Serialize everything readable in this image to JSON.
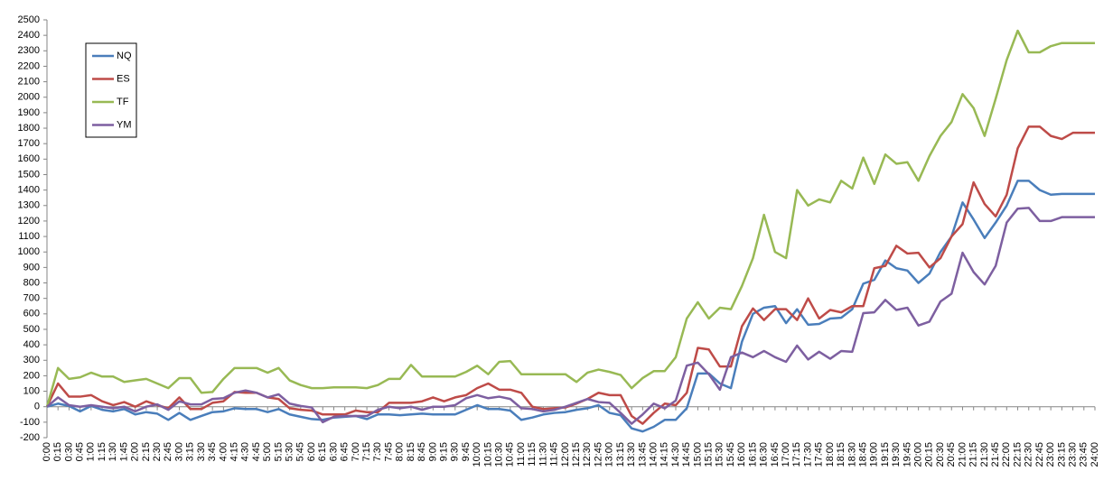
{
  "chart_data": {
    "type": "line",
    "categories": [
      "0:00",
      "0:15",
      "0:30",
      "0:45",
      "1:00",
      "1:15",
      "1:30",
      "1:45",
      "2:00",
      "2:15",
      "2:30",
      "2:45",
      "3:00",
      "3:15",
      "3:30",
      "3:45",
      "4:00",
      "4:15",
      "4:30",
      "4:45",
      "5:00",
      "5:15",
      "5:30",
      "5:45",
      "6:00",
      "6:15",
      "6:30",
      "6:45",
      "7:00",
      "7:15",
      "7:30",
      "7:45",
      "8:00",
      "8:15",
      "8:45",
      "9:00",
      "9:15",
      "9:30",
      "9:45",
      "10:00",
      "10:15",
      "10:30",
      "10:45",
      "11:00",
      "11:15",
      "11:30",
      "11:45",
      "12:00",
      "12:15",
      "12:30",
      "12:45",
      "13:00",
      "13:15",
      "13:30",
      "13:45",
      "14:00",
      "14:15",
      "14:30",
      "14:45",
      "15:00",
      "15:15",
      "15:30",
      "15:45",
      "16:00",
      "16:15",
      "16:30",
      "16:45",
      "17:00",
      "17:15",
      "17:30",
      "17:45",
      "18:00",
      "18:15",
      "18:30",
      "18:45",
      "19:00",
      "19:15",
      "19:30",
      "19:45",
      "20:00",
      "20:15",
      "20:30",
      "20:45",
      "21:00",
      "21:15",
      "21:30",
      "21:45",
      "22:00",
      "22:15",
      "22:30",
      "22:45",
      "23:00",
      "23:15",
      "23:30",
      "23:45",
      "24:00"
    ],
    "series": [
      {
        "name": "NQ",
        "color": "#4a7ebb",
        "values": [
          0,
          20,
          5,
          -30,
          5,
          -20,
          -30,
          -15,
          -50,
          -35,
          -45,
          -85,
          -40,
          -85,
          -60,
          -35,
          -30,
          -10,
          -15,
          -15,
          -35,
          -15,
          -50,
          -65,
          -80,
          -85,
          -70,
          -65,
          -60,
          -80,
          -50,
          -50,
          -55,
          -50,
          -45,
          -50,
          -50,
          -50,
          -20,
          10,
          -15,
          -15,
          -25,
          -85,
          -70,
          -50,
          -40,
          -35,
          -20,
          -10,
          10,
          -40,
          -55,
          -140,
          -160,
          -130,
          -85,
          -85,
          -10,
          215,
          215,
          150,
          120,
          420,
          600,
          640,
          650,
          540,
          630,
          530,
          535,
          570,
          575,
          630,
          795,
          820,
          945,
          895,
          880,
          800,
          860,
          1000,
          1100,
          1320,
          1210,
          1090,
          1190,
          1300,
          1460,
          1460,
          1400,
          1370,
          1375,
          1375,
          1375,
          1375
        ]
      },
      {
        "name": "ES",
        "color": "#be4b48",
        "values": [
          0,
          150,
          65,
          65,
          75,
          35,
          10,
          30,
          0,
          35,
          10,
          -10,
          60,
          -15,
          -15,
          25,
          35,
          95,
          90,
          90,
          60,
          50,
          -10,
          -20,
          -25,
          -50,
          -50,
          -50,
          -25,
          -35,
          -35,
          25,
          25,
          25,
          35,
          60,
          35,
          60,
          75,
          120,
          150,
          110,
          110,
          90,
          0,
          -15,
          -10,
          -5,
          20,
          50,
          90,
          75,
          75,
          -60,
          -110,
          -40,
          20,
          10,
          90,
          380,
          370,
          260,
          260,
          520,
          635,
          560,
          630,
          630,
          560,
          700,
          570,
          625,
          610,
          650,
          650,
          895,
          910,
          1040,
          990,
          995,
          900,
          960,
          1100,
          1180,
          1450,
          1310,
          1230,
          1370,
          1670,
          1810,
          1810,
          1750,
          1730,
          1770,
          1770,
          1770
        ]
      },
      {
        "name": "TF",
        "color": "#98b954",
        "values": [
          0,
          250,
          180,
          190,
          220,
          195,
          195,
          160,
          170,
          180,
          150,
          120,
          185,
          185,
          90,
          95,
          180,
          250,
          250,
          250,
          220,
          250,
          170,
          140,
          120,
          120,
          125,
          125,
          125,
          120,
          140,
          180,
          180,
          270,
          195,
          195,
          195,
          195,
          225,
          265,
          210,
          290,
          295,
          210,
          210,
          210,
          210,
          210,
          160,
          220,
          240,
          225,
          205,
          120,
          185,
          230,
          230,
          320,
          570,
          675,
          570,
          640,
          630,
          780,
          960,
          1240,
          1000,
          960,
          1400,
          1300,
          1340,
          1320,
          1460,
          1410,
          1610,
          1440,
          1630,
          1570,
          1580,
          1460,
          1620,
          1750,
          1840,
          2020,
          1930,
          1750,
          1990,
          2240,
          2430,
          2290,
          2290,
          2330,
          2350,
          2350,
          2350,
          2350
        ]
      },
      {
        "name": "YM",
        "color": "#7d5fa0",
        "values": [
          0,
          60,
          10,
          0,
          10,
          0,
          -10,
          0,
          -30,
          0,
          15,
          -20,
          35,
          15,
          15,
          50,
          55,
          90,
          105,
          90,
          60,
          80,
          20,
          5,
          -5,
          -100,
          -65,
          -60,
          -60,
          -60,
          -20,
          0,
          -10,
          0,
          -20,
          0,
          0,
          10,
          55,
          75,
          55,
          65,
          50,
          -10,
          -15,
          -30,
          -20,
          0,
          25,
          50,
          30,
          25,
          -40,
          -110,
          -50,
          20,
          -10,
          40,
          265,
          285,
          210,
          110,
          320,
          350,
          320,
          360,
          320,
          290,
          395,
          305,
          355,
          310,
          360,
          355,
          605,
          610,
          690,
          625,
          640,
          525,
          550,
          680,
          730,
          995,
          870,
          790,
          910,
          1190,
          1280,
          1285,
          1200,
          1200,
          1225,
          1225,
          1225,
          1225
        ]
      }
    ],
    "ylim": [
      -200,
      2500
    ],
    "yticks": [
      -200,
      -100,
      0,
      100,
      200,
      300,
      400,
      500,
      600,
      700,
      800,
      900,
      1000,
      1100,
      1200,
      1300,
      1400,
      1500,
      1600,
      1700,
      1800,
      1900,
      2000,
      2100,
      2200,
      2300,
      2400,
      2500
    ],
    "grid": false,
    "legend": "upper-left"
  }
}
